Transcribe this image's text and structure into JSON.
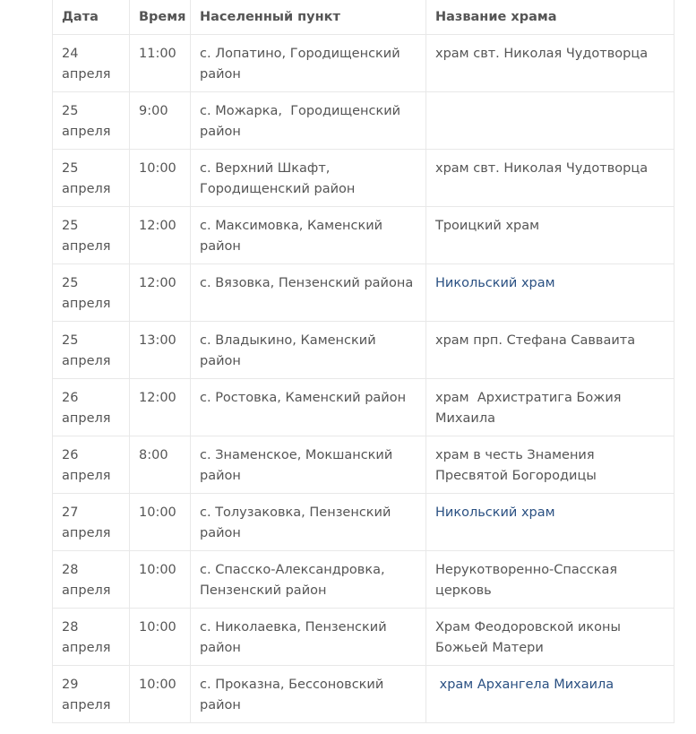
{
  "headers": [
    "Дата",
    "Время",
    "Населенный пункт",
    "Название храма"
  ],
  "link_color": "#2a5082",
  "rows": [
    {
      "date": "24 апреля",
      "time": "11:00",
      "place": "с. Лопатино, Городищенский район",
      "church": "храм свт. Николая Чудотворца",
      "link": false
    },
    {
      "date": "25 апреля",
      "time": "9:00",
      "place": "с. Можарка,  Городищенский район",
      "church": "",
      "link": false
    },
    {
      "date": "25 апреля",
      "time": "10:00",
      "place": "с. Верхний Шкафт, Городищенский район",
      "church": "храм свт. Николая Чудотворца",
      "link": false
    },
    {
      "date": "25 апреля",
      "time": "12:00",
      "place": "с. Максимовка, Каменский район",
      "church": "Троицкий храм",
      "link": false
    },
    {
      "date": "25 апреля",
      "time": "12:00",
      "place": "с. Вязовка, Пензенский района",
      "church": "Никольский храм",
      "link": true
    },
    {
      "date": "25 апреля",
      "time": "13:00",
      "place": "с. Владыкино, Каменский район",
      "church": "храм прп. Стефана Савваита",
      "link": false
    },
    {
      "date": "26 апреля",
      "time": "12:00",
      "place": "с. Ростовка, Каменский район",
      "church": "храм  Архистратига Божия Михаила",
      "link": false
    },
    {
      "date": "26 апреля",
      "time": "8:00",
      "place": "с. Знаменское, Мокшанский район",
      "church": "храм в честь Знамения Пресвятой Богородицы",
      "link": false
    },
    {
      "date": "27 апреля",
      "time": "10:00",
      "place": "с. Толузаковка, Пензенский район",
      "church": "Никольский храм",
      "link": true
    },
    {
      "date": "28 апреля",
      "time": "10:00",
      "place": "с. Спасско-Александровка, Пензенский район",
      "church": "Нерукотворенно-Спасская церковь",
      "link": false
    },
    {
      "date": "28 апреля",
      "time": "10:00",
      "place": "с. Николаевка, Пензенский район",
      "church": "Храм Феодоровской иконы Божьей Матери",
      "link": false
    },
    {
      "date": "29 апреля",
      "time": "10:00",
      "place": "с. Проказна, Бессоновский район",
      "church": " храм Архангела Михаила",
      "link": true
    }
  ]
}
